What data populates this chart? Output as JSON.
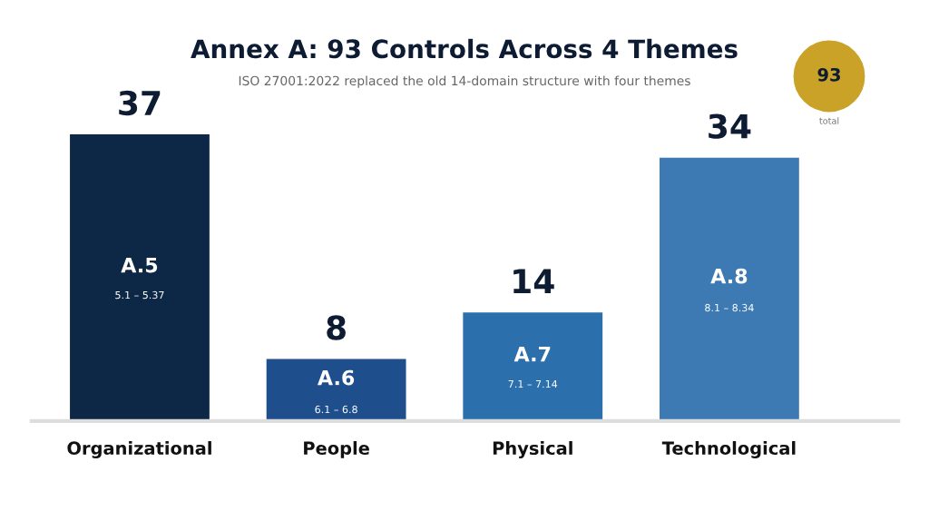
{
  "chart_data": {
    "type": "bar",
    "title": "Annex A: 93 Controls Across 4 Themes",
    "subtitle": "ISO 27001:2022 replaced the old 14-domain structure with four themes",
    "categories": [
      "Organizational",
      "People",
      "Physical",
      "Technological"
    ],
    "values": [
      37,
      8,
      14,
      34
    ],
    "colors": [
      "#0d2847",
      "#1f4e8c",
      "#2c6fad",
      "#3d7ab3"
    ],
    "data_labels": true,
    "tick_labels": "x",
    "grid": false,
    "annotations": [
      "A.5",
      "5.1 – 5.37",
      "A.6",
      "6.1 – 6.8",
      "A.7",
      "7.1 – 7.14",
      "A.8",
      "8.1 – 8.34",
      "93",
      "total"
    ]
  }
}
